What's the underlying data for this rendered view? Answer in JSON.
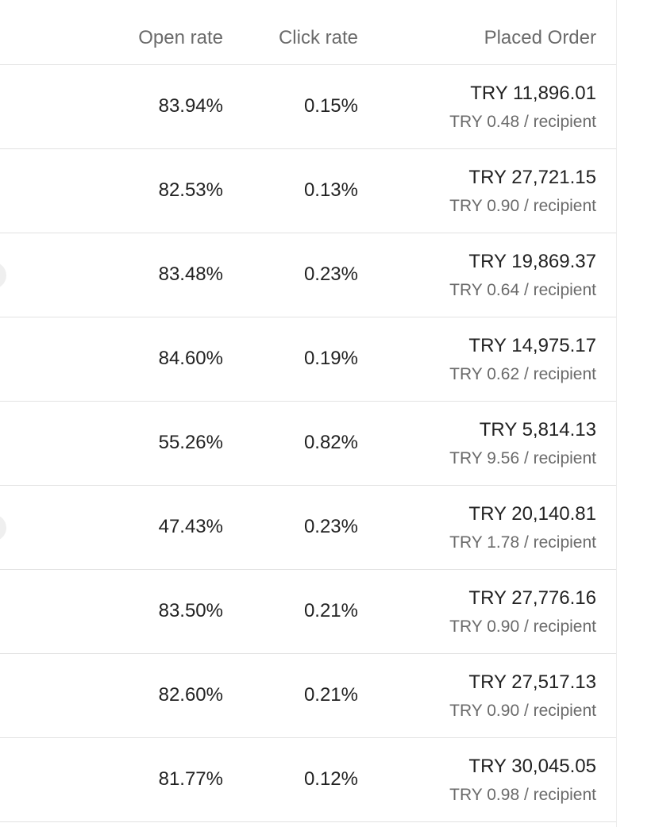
{
  "table": {
    "header": [
      "Open rate",
      "Click rate",
      "Placed Order"
    ],
    "rows": [
      [
        "83.94%",
        "0.15%",
        "TRY 11,896.01",
        "TRY 0.48 / recipient"
      ],
      [
        "82.53%",
        "0.13%",
        "TRY 27,721.15",
        "TRY 0.90 / recipient"
      ],
      [
        "83.48%",
        "0.23%",
        "TRY 19,869.37",
        "TRY 0.64 / recipient"
      ],
      [
        "84.60%",
        "0.19%",
        "TRY 14,975.17",
        "TRY 0.62 / recipient"
      ],
      [
        "55.26%",
        "0.82%",
        "TRY 5,814.13",
        "TRY 9.56 / recipient"
      ],
      [
        "47.43%",
        "0.23%",
        "TRY 20,140.81",
        "TRY 1.78 / recipient"
      ],
      [
        "83.50%",
        "0.21%",
        "TRY 27,776.16",
        "TRY 0.90 / recipient"
      ],
      [
        "82.60%",
        "0.21%",
        "TRY 27,517.13",
        "TRY 0.90 / recipient"
      ],
      [
        "81.77%",
        "0.12%",
        "TRY 30,045.05",
        "TRY 0.98 / recipient"
      ]
    ]
  }
}
